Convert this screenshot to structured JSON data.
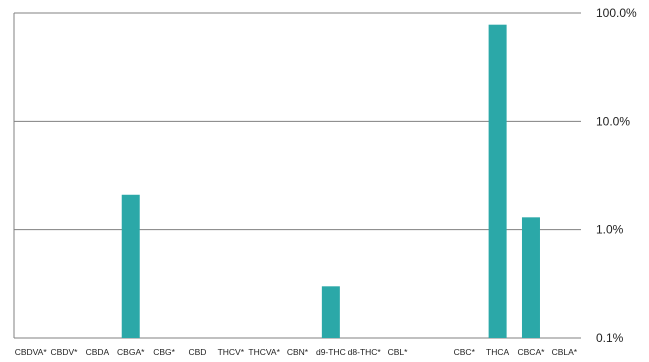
{
  "chart_data": {
    "type": "bar",
    "title": "",
    "xlabel": "",
    "ylabel": "",
    "y_scale": "log",
    "ylim": [
      0.1,
      100
    ],
    "y_ticks": [
      {
        "value": 100,
        "label": "100.0%"
      },
      {
        "value": 10,
        "label": "10.0%"
      },
      {
        "value": 1,
        "label": "1.0%"
      },
      {
        "value": 0.1,
        "label": "0.1%"
      }
    ],
    "y_axis_position": "right",
    "grid": "horizontal",
    "legend": "none",
    "categories": [
      "CBDVA*",
      "CBDV*",
      "CBDA",
      "CBGA*",
      "CBG*",
      "CBD",
      "THCV*",
      "THCVA*",
      "CBN*",
      "d9-THC",
      "d8-THC*",
      "CBL*",
      "",
      "CBC*",
      "THCA",
      "CBCA*",
      "CBLA*"
    ],
    "values": [
      null,
      null,
      null,
      2.1,
      null,
      null,
      null,
      null,
      null,
      0.3,
      null,
      null,
      null,
      null,
      78,
      1.3,
      null
    ],
    "bar_color": "#2BA8A8",
    "gridline_color": "#808080"
  }
}
